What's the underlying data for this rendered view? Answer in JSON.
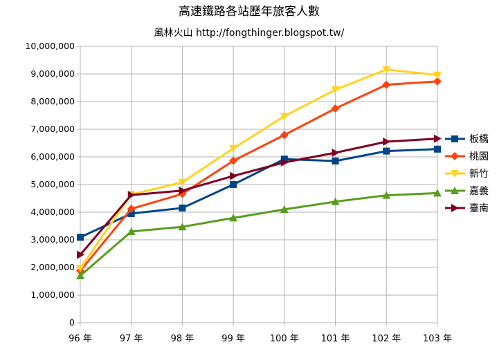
{
  "chart_data": {
    "type": "line",
    "title": "高速鐵路各站歷年旅客人數",
    "subtitle": "風林火山  http://fongthinger.blogspot.tw/",
    "categories": [
      "96 年",
      "97 年",
      "98 年",
      "99 年",
      "100 年",
      "101 年",
      "102 年",
      "103 年"
    ],
    "ylim": [
      0,
      10000000
    ],
    "y_ticks": [
      "0",
      "1,000,000",
      "2,000,000",
      "3,000,000",
      "4,000,000",
      "5,000,000",
      "6,000,000",
      "7,000,000",
      "8,000,000",
      "9,000,000",
      "10,000,000"
    ],
    "grid": "horizontal and vertical",
    "legend": "right",
    "series": [
      {
        "name": "板橋",
        "color": "#004586",
        "marker": "square",
        "values": [
          3090000,
          3950000,
          4150000,
          5000000,
          5920000,
          5850000,
          6210000,
          6280000
        ]
      },
      {
        "name": "桃園",
        "color": "#ff420e",
        "marker": "diamond",
        "values": [
          1880000,
          4120000,
          4660000,
          5860000,
          6790000,
          7750000,
          8610000,
          8730000
        ]
      },
      {
        "name": "新竹",
        "color": "#ffd320",
        "marker": "triangle-down",
        "values": [
          1970000,
          4640000,
          5080000,
          6310000,
          7470000,
          8430000,
          9160000,
          8960000
        ]
      },
      {
        "name": "嘉義",
        "color": "#579d1c",
        "marker": "triangle-up",
        "values": [
          1700000,
          3300000,
          3470000,
          3790000,
          4100000,
          4380000,
          4610000,
          4690000
        ]
      },
      {
        "name": "臺南",
        "color": "#7e0021",
        "marker": "triangle-right",
        "values": [
          2460000,
          4620000,
          4780000,
          5310000,
          5800000,
          6150000,
          6550000,
          6660000
        ]
      }
    ]
  }
}
